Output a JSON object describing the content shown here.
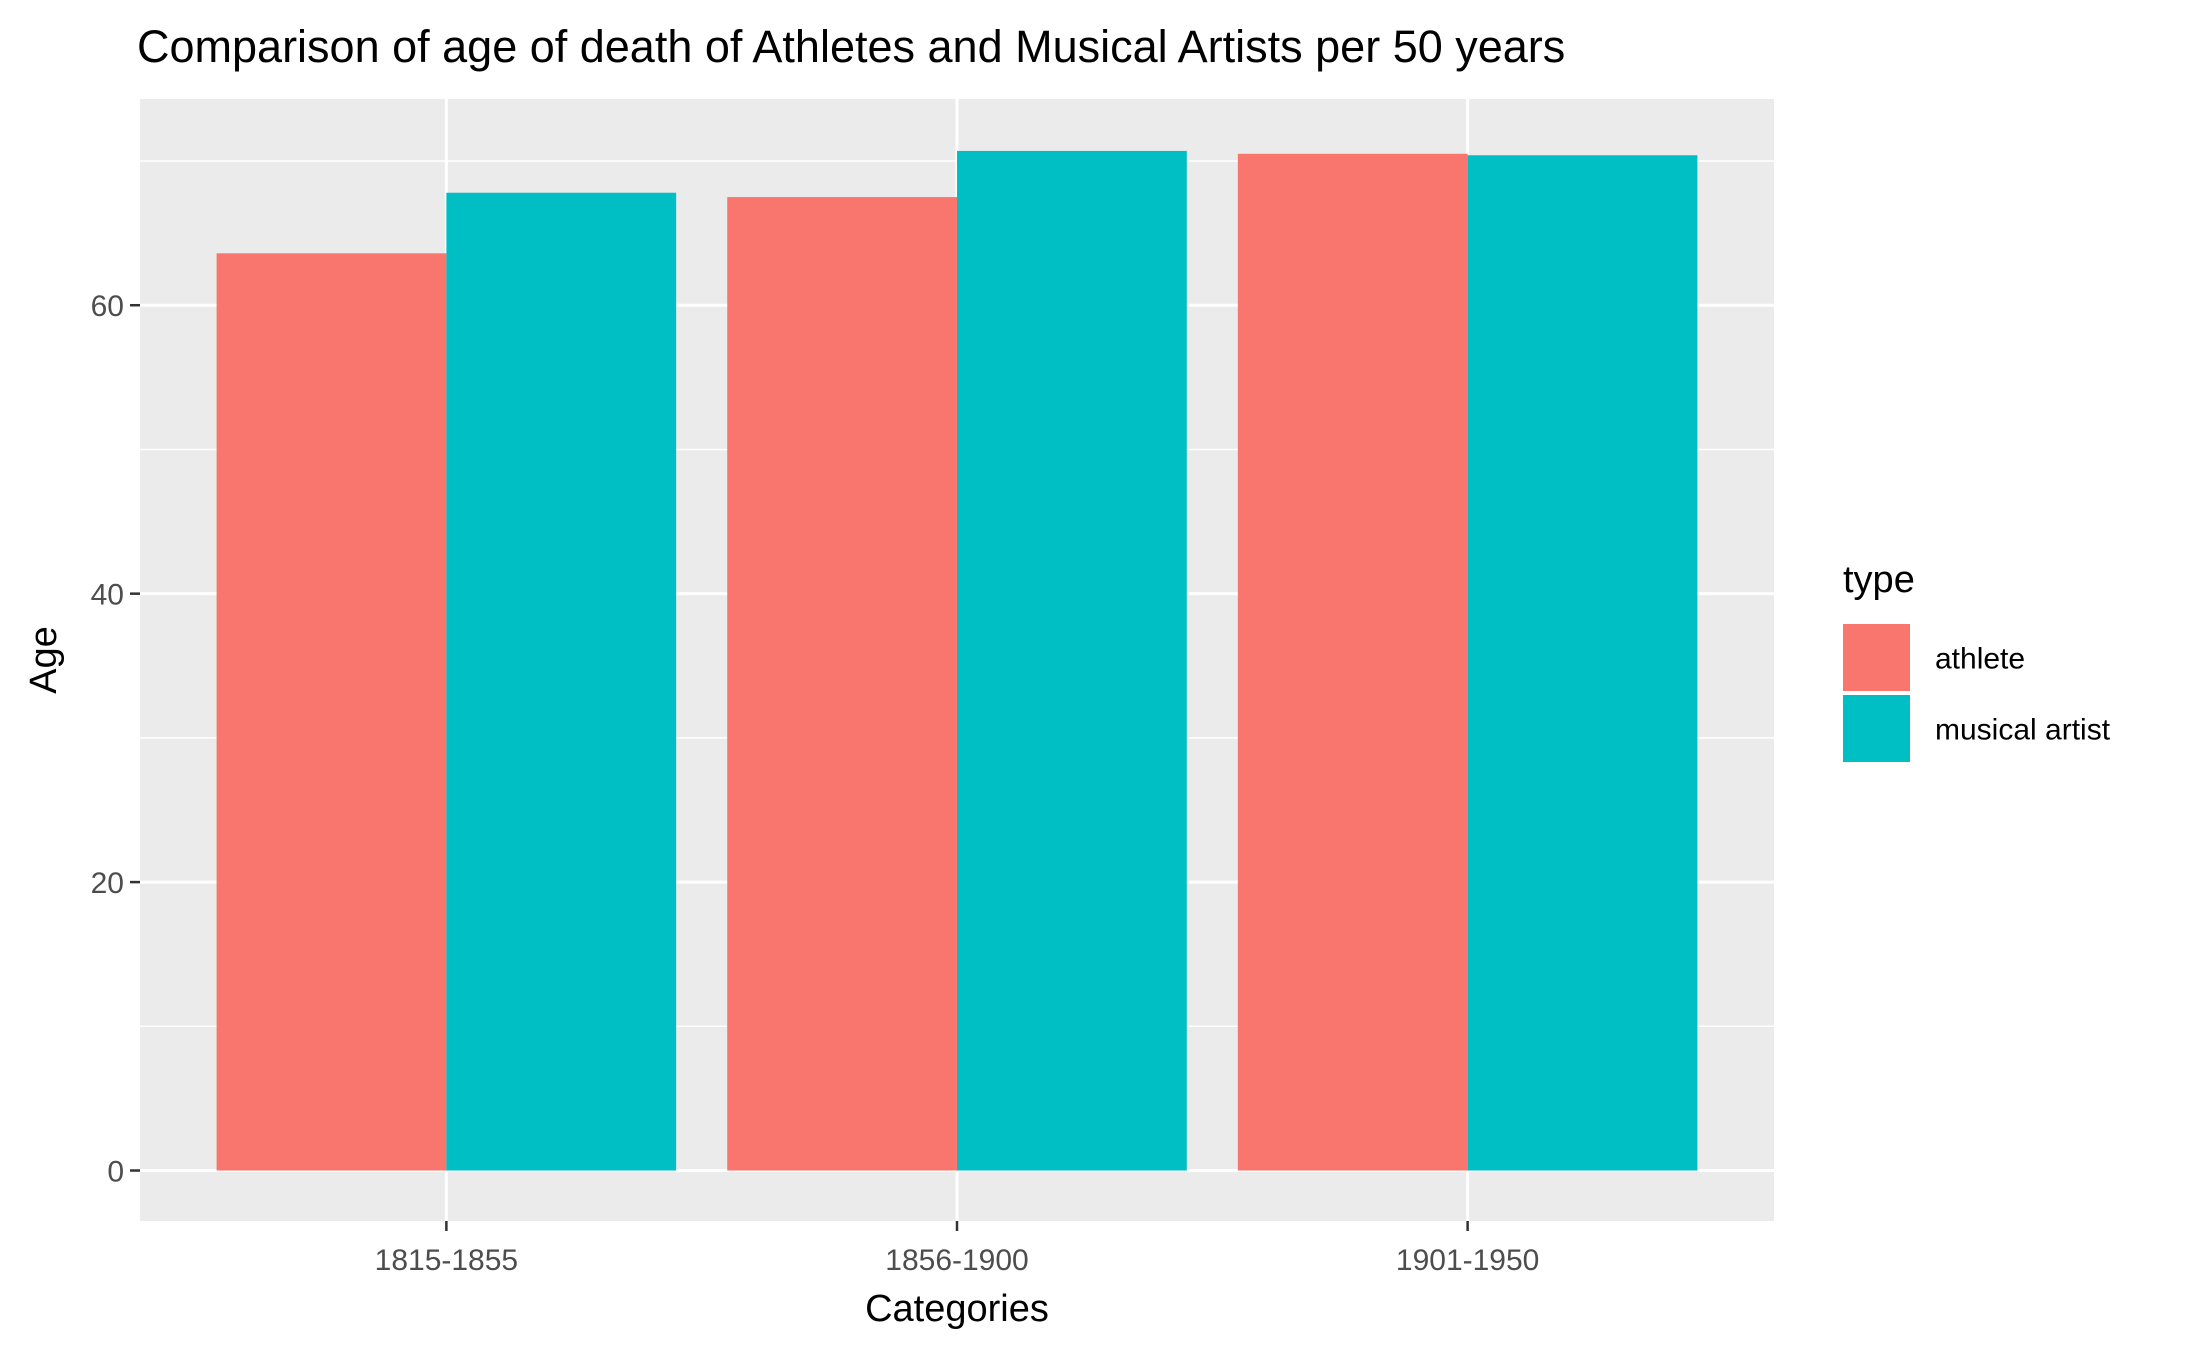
{
  "chart_data": {
    "type": "bar",
    "title": "Comparison of age of death of Athletes and Musical Artists per 50 years",
    "xlabel": "Categories",
    "ylabel": "Age",
    "categories": [
      "1815-1855",
      "1856-1900",
      "1901-1950"
    ],
    "series": [
      {
        "name": "athlete",
        "color": "#F8766D",
        "values": [
          63.6,
          67.5,
          70.5
        ]
      },
      {
        "name": "musical artist",
        "color": "#00BFC4",
        "values": [
          67.8,
          70.7,
          70.4
        ]
      }
    ],
    "ylim": [
      -3.5,
      74.3
    ],
    "yticks": [
      0,
      20,
      40,
      60
    ],
    "grid": true,
    "legend": {
      "title": "type",
      "placement": "right"
    },
    "colors": {
      "panel_background": "#EBEBEB",
      "grid": "#FFFFFF",
      "tick_text": "#4D4D4D"
    }
  }
}
